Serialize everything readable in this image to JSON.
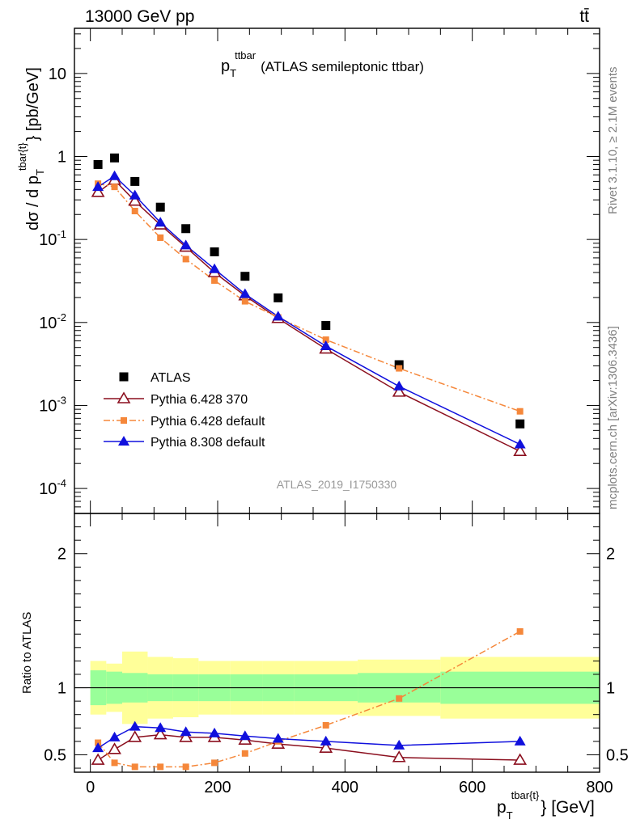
{
  "header": {
    "left": "13000 GeV pp",
    "right": "tt̄"
  },
  "side_labels": {
    "rivet": "Rivet 3.1.10, ≥ 2.1M events",
    "mcplots": "mcplots.cern.ch [arXiv:1306.3436]"
  },
  "analysis_id": "ATLAS_2019_I1750330",
  "colors": {
    "data": "#000000",
    "pythia6_370": "#8b0f1e",
    "pythia6_default": "#f5873a",
    "pythia8_default": "#1010dd",
    "band_inner": "#99ff99",
    "band_outer": "#ffff99"
  },
  "chart_data": [
    {
      "type": "scatter",
      "title": "p_T^{ttbar} (ATLAS semileptonic ttbar)",
      "title_main": "p",
      "title_sub": "T",
      "title_sup": "ttbar",
      "title_rest": "(ATLAS semileptonic ttbar)",
      "ylabel": "dσ / d p_T^{tbar{t}} [pb/GeV]",
      "ylabel_main": "dσ / d p",
      "ylabel_sub": "T",
      "ylabel_sup": "tbar{t}",
      "ylabel_rest": "} [pb/GeV]",
      "yscale": "log",
      "ylim": [
        5e-05,
        35
      ],
      "xlim": [
        -25,
        800
      ],
      "y_tick_labels": [
        "10^-4",
        "10^-3",
        "10^-2",
        "10^-1",
        "1",
        "10"
      ],
      "legend_position": "lower-left",
      "x": [
        12,
        38,
        70,
        110,
        150,
        195,
        243,
        295,
        370,
        485,
        675
      ],
      "series": [
        {
          "name": "ATLAS",
          "marker": "square",
          "values": [
            0.8,
            0.96,
            0.5,
            0.245,
            0.135,
            0.071,
            0.036,
            0.0198,
            0.0092,
            0.0031,
            0.0006
          ]
        },
        {
          "name": "Pythia 6.428 370",
          "marker": "open-triangle",
          "line": "solid",
          "values": [
            0.37,
            0.52,
            0.29,
            0.15,
            0.081,
            0.04,
            0.021,
            0.0112,
            0.0048,
            0.00145,
            0.00028
          ]
        },
        {
          "name": "Pythia 6.428 default",
          "marker": "small-square",
          "line": "dash-dot",
          "values": [
            0.47,
            0.43,
            0.22,
            0.105,
            0.058,
            0.032,
            0.018,
            0.0115,
            0.0062,
            0.0028,
            0.00085
          ]
        },
        {
          "name": "Pythia 8.308 default",
          "marker": "filled-triangle",
          "line": "solid",
          "values": [
            0.43,
            0.58,
            0.34,
            0.16,
            0.085,
            0.044,
            0.022,
            0.0118,
            0.0052,
            0.0017,
            0.00034
          ]
        }
      ]
    },
    {
      "type": "scatter",
      "ylabel": "Ratio to ATLAS",
      "xlabel": "p_T^{tbar{t}} [GeV]",
      "xlabel_main": "p",
      "xlabel_sub": "T",
      "xlabel_sup": "tbar{t}",
      "xlabel_rest": "} [GeV]",
      "ylim": [
        0.37,
        2.3
      ],
      "y_ticks": [
        0.5,
        1,
        2
      ],
      "y_tick_labels": [
        "0.5",
        "1",
        "2"
      ],
      "x_ticks": [
        0,
        200,
        400,
        600,
        800
      ],
      "x_tick_labels": [
        "0",
        "200",
        "400",
        "600",
        "800"
      ],
      "x": [
        12,
        38,
        70,
        110,
        150,
        195,
        243,
        295,
        370,
        485,
        675
      ],
      "bins": [
        0,
        25,
        50,
        90,
        130,
        170,
        220,
        270,
        320,
        420,
        550,
        800
      ],
      "band_inner": [
        0.13,
        0.12,
        0.11,
        0.1,
        0.1,
        0.1,
        0.1,
        0.1,
        0.1,
        0.11,
        0.12
      ],
      "band_outer": [
        0.2,
        0.18,
        0.27,
        0.23,
        0.22,
        0.2,
        0.2,
        0.2,
        0.2,
        0.21,
        0.23
      ],
      "series": [
        {
          "name": "Pythia 6.428 370",
          "values": [
            0.46,
            0.54,
            0.63,
            0.65,
            0.63,
            0.63,
            0.61,
            0.58,
            0.55,
            0.48,
            0.46
          ]
        },
        {
          "name": "Pythia 6.428 default",
          "values": [
            0.59,
            0.44,
            0.41,
            0.41,
            0.41,
            0.44,
            0.51,
            0.6,
            0.72,
            0.92,
            1.42
          ]
        },
        {
          "name": "Pythia 8.308 default",
          "values": [
            0.55,
            0.63,
            0.71,
            0.7,
            0.67,
            0.66,
            0.64,
            0.62,
            0.6,
            0.57,
            0.6
          ]
        }
      ]
    }
  ]
}
